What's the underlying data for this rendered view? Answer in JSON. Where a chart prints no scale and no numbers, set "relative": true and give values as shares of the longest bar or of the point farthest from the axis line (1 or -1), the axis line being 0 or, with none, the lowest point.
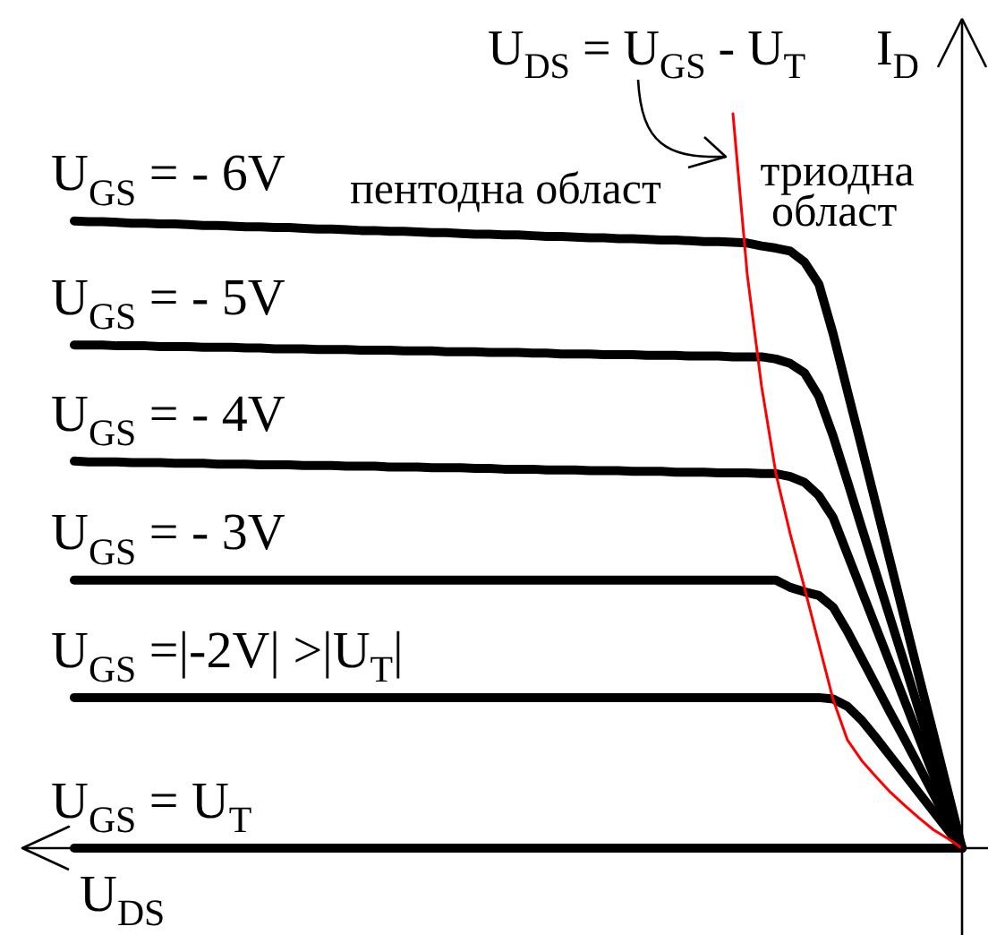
{
  "chart_data": {
    "type": "line",
    "relative": true,
    "xlabel": "U$_{DS}$",
    "ylabel": "I$_{D}$",
    "categories": [
      null,
      null,
      null,
      null,
      null,
      null,
      null,
      null,
      null,
      null,
      null,
      null,
      null,
      null,
      null,
      null,
      null,
      null,
      null,
      null,
      null,
      null,
      null,
      null,
      null,
      null,
      null,
      null,
      null,
      null,
      null,
      null,
      null,
      null,
      null,
      null,
      null,
      null,
      null,
      null,
      null,
      null,
      null,
      null,
      null,
      null,
      null,
      null,
      null,
      null,
      null,
      null,
      null,
      null,
      null,
      null,
      null,
      null,
      null,
      null,
      null,
      null,
      null
    ],
    "series": [
      {
        "name": "U$_{GS}$ = - 6V",
        "color": "#000000",
        "values": [
          0.854,
          0.853,
          0.853,
          0.852,
          0.851,
          0.851,
          0.85,
          0.85,
          0.849,
          0.848,
          0.848,
          0.847,
          0.846,
          0.846,
          0.845,
          0.845,
          0.844,
          0.843,
          0.843,
          0.842,
          0.841,
          0.841,
          0.84,
          0.84,
          0.839,
          0.838,
          0.838,
          0.837,
          0.836,
          0.836,
          0.835,
          0.835,
          0.834,
          0.833,
          0.833,
          0.832,
          0.831,
          0.831,
          0.83,
          0.83,
          0.829,
          0.828,
          0.828,
          0.827,
          0.826,
          0.826,
          0.825,
          0.824,
          0.82,
          0.817,
          0.813,
          0.798,
          0.768,
          0.7,
          0.622,
          0.545,
          0.467,
          0.389,
          0.311,
          0.233,
          0.156,
          0.078,
          0
        ]
      },
      {
        "name": "U$_{GS}$ = - 5V",
        "color": "#000000",
        "values": [
          0.685,
          0.685,
          0.685,
          0.684,
          0.684,
          0.684,
          0.683,
          0.683,
          0.683,
          0.682,
          0.682,
          0.682,
          0.681,
          0.681,
          0.68,
          0.68,
          0.68,
          0.679,
          0.679,
          0.679,
          0.678,
          0.678,
          0.678,
          0.677,
          0.677,
          0.677,
          0.676,
          0.676,
          0.676,
          0.675,
          0.675,
          0.675,
          0.674,
          0.674,
          0.673,
          0.673,
          0.673,
          0.672,
          0.672,
          0.672,
          0.671,
          0.671,
          0.671,
          0.67,
          0.67,
          0.67,
          0.669,
          0.669,
          0.669,
          0.666,
          0.66,
          0.647,
          0.615,
          0.561,
          0.499,
          0.436,
          0.374,
          0.312,
          0.25,
          0.187,
          0.125,
          0.062,
          0
        ]
      },
      {
        "name": "U$_{GS}$ = - 4V",
        "color": "#000000",
        "values": [
          0.527,
          0.526,
          0.526,
          0.526,
          0.525,
          0.525,
          0.525,
          0.524,
          0.524,
          0.524,
          0.523,
          0.523,
          0.523,
          0.522,
          0.522,
          0.522,
          0.521,
          0.521,
          0.521,
          0.52,
          0.52,
          0.52,
          0.519,
          0.519,
          0.519,
          0.518,
          0.518,
          0.518,
          0.517,
          0.517,
          0.516,
          0.516,
          0.516,
          0.515,
          0.515,
          0.515,
          0.514,
          0.514,
          0.514,
          0.513,
          0.513,
          0.513,
          0.512,
          0.512,
          0.512,
          0.511,
          0.511,
          0.511,
          0.51,
          0.51,
          0.506,
          0.498,
          0.48,
          0.45,
          0.4,
          0.35,
          0.3,
          0.25,
          0.2,
          0.15,
          0.1,
          0.05,
          0
        ]
      },
      {
        "name": "U$_{GS}$ = - 3V",
        "color": "#000000",
        "values": [
          0.365,
          0.365,
          0.365,
          0.365,
          0.365,
          0.365,
          0.365,
          0.365,
          0.365,
          0.365,
          0.365,
          0.365,
          0.365,
          0.365,
          0.365,
          0.365,
          0.365,
          0.365,
          0.365,
          0.365,
          0.365,
          0.365,
          0.365,
          0.365,
          0.365,
          0.365,
          0.365,
          0.365,
          0.365,
          0.365,
          0.365,
          0.365,
          0.365,
          0.365,
          0.365,
          0.365,
          0.365,
          0.365,
          0.365,
          0.365,
          0.365,
          0.365,
          0.365,
          0.365,
          0.365,
          0.365,
          0.365,
          0.365,
          0.365,
          0.365,
          0.355,
          0.349,
          0.344,
          0.328,
          0.295,
          0.258,
          0.221,
          0.184,
          0.148,
          0.111,
          0.074,
          0.037,
          0
        ]
      },
      {
        "name": "U$_{GS}$ =|-2V| >|U$_{T}$|",
        "color": "#000000",
        "values": [
          0.205,
          0.205,
          0.205,
          0.205,
          0.205,
          0.205,
          0.205,
          0.205,
          0.205,
          0.205,
          0.205,
          0.205,
          0.205,
          0.205,
          0.205,
          0.205,
          0.205,
          0.205,
          0.205,
          0.205,
          0.205,
          0.205,
          0.205,
          0.205,
          0.205,
          0.205,
          0.205,
          0.205,
          0.205,
          0.205,
          0.205,
          0.205,
          0.205,
          0.205,
          0.205,
          0.205,
          0.205,
          0.205,
          0.205,
          0.205,
          0.205,
          0.205,
          0.205,
          0.205,
          0.205,
          0.205,
          0.205,
          0.205,
          0.205,
          0.205,
          0.205,
          0.205,
          0.205,
          0.203,
          0.193,
          0.174,
          0.15,
          0.125,
          0.1,
          0.075,
          0.05,
          0.025,
          0
        ]
      },
      {
        "name": "U$_{GS}$ = U$_{T}$",
        "color": "#000000",
        "values": [
          0,
          0,
          0,
          0,
          0,
          0,
          0,
          0,
          0,
          0,
          0,
          0,
          0,
          0,
          0,
          0,
          0,
          0,
          0,
          0,
          0,
          0,
          0,
          0,
          0,
          0,
          0,
          0,
          0,
          0,
          0,
          0,
          0,
          0,
          0,
          0,
          0,
          0,
          0,
          0,
          0,
          0,
          0,
          0,
          0,
          0,
          0,
          0,
          0,
          0,
          0,
          0,
          0,
          0,
          0,
          0,
          0,
          0,
          0,
          0,
          0,
          0,
          0
        ]
      },
      {
        "color": "#ff0000",
        "values": [
          null,
          null,
          null,
          null,
          null,
          null,
          null,
          null,
          null,
          null,
          null,
          null,
          null,
          null,
          null,
          null,
          null,
          null,
          null,
          null,
          null,
          null,
          null,
          null,
          null,
          null,
          null,
          null,
          null,
          null,
          null,
          null,
          null,
          null,
          null,
          null,
          null,
          null,
          null,
          null,
          null,
          null,
          null,
          null,
          null,
          null,
          1,
          0.781,
          0.629,
          0.51,
          0.428,
          0.354,
          0.278,
          0.202,
          0.147,
          0.119,
          0.097,
          0.076,
          0.058,
          0.041,
          0.025,
          0.013,
          0
        ]
      }
    ],
    "annotations": [
      "U$_{DS}$ = U$_{GS}$ - U$_{T}$",
      "пентодна област",
      "триодна\nобласт"
    ]
  }
}
